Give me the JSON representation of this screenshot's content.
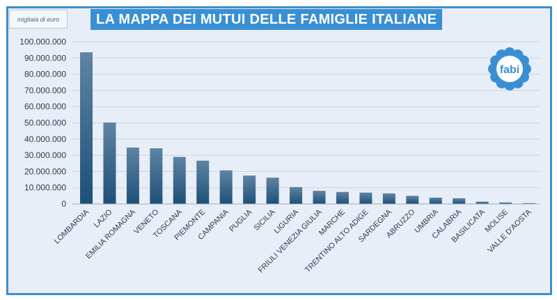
{
  "header": {
    "title": "LA MAPPA DEI MUTUI DELLE FAMIGLIE ITALIANE",
    "unit_note": "migliaia di euro"
  },
  "logo": {
    "text": "fabi",
    "color": "#3a8fd4"
  },
  "colors": {
    "frame_border": "#3b8fd0",
    "bar_top": "#5f84a3",
    "bar_bottom": "#1d4f78",
    "grid": "#c9d3df"
  },
  "chart_data": {
    "type": "bar",
    "ylabel": "migliaia di euro",
    "ylim": [
      0,
      100000000
    ],
    "y_ticks": [
      0,
      10000000,
      20000000,
      30000000,
      40000000,
      50000000,
      60000000,
      70000000,
      80000000,
      90000000,
      100000000
    ],
    "y_tick_labels": [
      "0",
      "10.000.000",
      "20.000.000",
      "30.000.000",
      "40.000.000",
      "50.000.000",
      "60.000.000",
      "70.000.000",
      "80.000.000",
      "90.000.000",
      "100.000.000"
    ],
    "grid": true,
    "categories": [
      "LOMBARDIA",
      "LAZIO",
      "EMILIA ROMAGNA",
      "VENETO",
      "TOSCANA",
      "PIEMONTE",
      "CAMPANIA",
      "PUGLIA",
      "SICILIA",
      "LIGURIA",
      "FRIULI VENEZIA GIULIA",
      "MARCHE",
      "TRENTINO ALTO ADIGE",
      "SARDEGNA",
      "ABRUZZO",
      "UMBRIA",
      "CALABRIA",
      "BASILICATA",
      "MOLISE",
      "VALLE D'AOSTA"
    ],
    "values": [
      93500000,
      50200000,
      34800000,
      34300000,
      29000000,
      26700000,
      20700000,
      17500000,
      16200000,
      10400000,
      8100000,
      7400000,
      7000000,
      6500000,
      5000000,
      3900000,
      3500000,
      1400000,
      900000,
      500000
    ]
  }
}
